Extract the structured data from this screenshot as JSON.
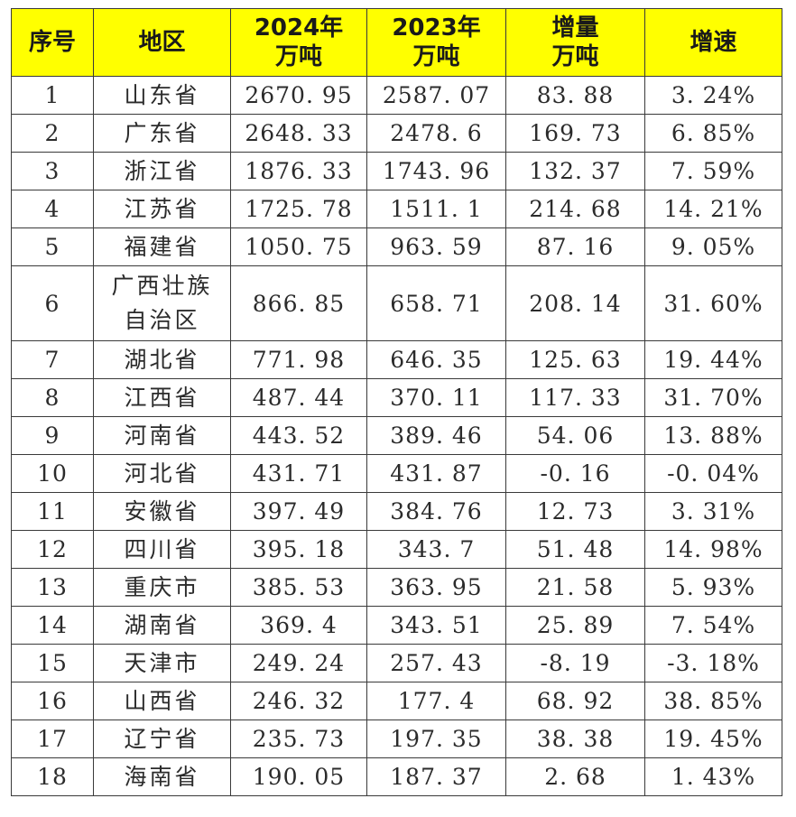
{
  "table": {
    "headers": {
      "rank": [
        "序号"
      ],
      "region": [
        "地区"
      ],
      "y2024": [
        "2024年",
        "万吨"
      ],
      "y2023": [
        "2023年",
        "万吨"
      ],
      "increase": [
        "增量",
        "万吨"
      ],
      "growth": [
        "增速"
      ]
    },
    "rows": [
      {
        "rank": "1",
        "region": "山东省",
        "y2024": "2670. 95",
        "y2023": "2587. 07",
        "increase": "83. 88",
        "growth": "3. 24%"
      },
      {
        "rank": "2",
        "region": "广东省",
        "y2024": "2648. 33",
        "y2023": "2478. 6",
        "increase": "169. 73",
        "growth": "6. 85%"
      },
      {
        "rank": "3",
        "region": "浙江省",
        "y2024": "1876. 33",
        "y2023": "1743. 96",
        "increase": "132. 37",
        "growth": "7. 59%"
      },
      {
        "rank": "4",
        "region": "江苏省",
        "y2024": "1725. 78",
        "y2023": "1511. 1",
        "increase": "214. 68",
        "growth": "14. 21%"
      },
      {
        "rank": "5",
        "region": "福建省",
        "y2024": "1050. 75",
        "y2023": "963. 59",
        "increase": "87. 16",
        "growth": "9. 05%"
      },
      {
        "rank": "6",
        "region": "广西壮族自治区",
        "y2024": "866. 85",
        "y2023": "658. 71",
        "increase": "208. 14",
        "growth": "31. 60%"
      },
      {
        "rank": "7",
        "region": "湖北省",
        "y2024": "771. 98",
        "y2023": "646. 35",
        "increase": "125. 63",
        "growth": "19. 44%"
      },
      {
        "rank": "8",
        "region": "江西省",
        "y2024": "487. 44",
        "y2023": "370. 11",
        "increase": "117. 33",
        "growth": "31. 70%"
      },
      {
        "rank": "9",
        "region": "河南省",
        "y2024": "443. 52",
        "y2023": "389. 46",
        "increase": "54. 06",
        "growth": "13. 88%"
      },
      {
        "rank": "10",
        "region": "河北省",
        "y2024": "431. 71",
        "y2023": "431. 87",
        "increase": "-0. 16",
        "growth": "-0. 04%"
      },
      {
        "rank": "11",
        "region": "安徽省",
        "y2024": "397. 49",
        "y2023": "384. 76",
        "increase": "12. 73",
        "growth": "3. 31%"
      },
      {
        "rank": "12",
        "region": "四川省",
        "y2024": "395. 18",
        "y2023": "343. 7",
        "increase": "51. 48",
        "growth": "14. 98%"
      },
      {
        "rank": "13",
        "region": "重庆市",
        "y2024": "385. 53",
        "y2023": "363. 95",
        "increase": "21. 58",
        "growth": "5. 93%"
      },
      {
        "rank": "14",
        "region": "湖南省",
        "y2024": "369. 4",
        "y2023": "343. 51",
        "increase": "25. 89",
        "growth": "7. 54%"
      },
      {
        "rank": "15",
        "region": "天津市",
        "y2024": "249. 24",
        "y2023": "257. 43",
        "increase": "-8. 19",
        "growth": "-3. 18%"
      },
      {
        "rank": "16",
        "region": "山西省",
        "y2024": "246. 32",
        "y2023": "177. 4",
        "increase": "68. 92",
        "growth": "38. 85%"
      },
      {
        "rank": "17",
        "region": "辽宁省",
        "y2024": "235. 73",
        "y2023": "197. 35",
        "increase": "38. 38",
        "growth": "19. 45%"
      },
      {
        "rank": "18",
        "region": "海南省",
        "y2024": "190. 05",
        "y2023": "187. 37",
        "increase": "2. 68",
        "growth": "1. 43%"
      }
    ]
  },
  "colors": {
    "header_background": "#ffff00",
    "border": "#3a3a3a",
    "text": "#2b2b2b"
  }
}
